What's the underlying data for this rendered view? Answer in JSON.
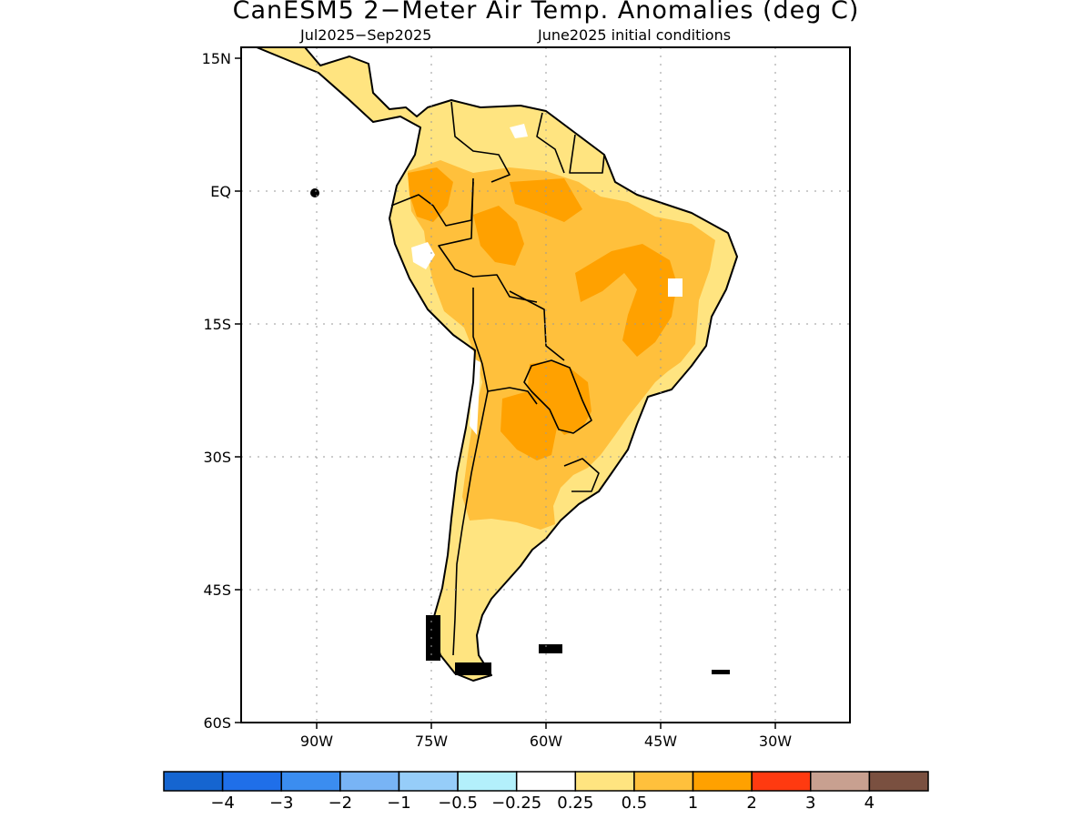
{
  "title": "CanESM5 2−Meter Air Temp. Anomalies (deg C)",
  "subtitle_left": "Jul2025−Sep2025",
  "subtitle_right": "June2025 initial conditions",
  "map": {
    "region": "South America",
    "lat_ticks": [
      "15N",
      "EQ",
      "15S",
      "30S",
      "45S",
      "60S"
    ],
    "lon_ticks": [
      "90W",
      "75W",
      "60W",
      "45W",
      "30W"
    ],
    "grid": "dotted",
    "colors": {
      "ocean": "#ffffff",
      "coast": "#000000",
      "c_025_05": "#ffe480",
      "c_05_1": "#ffc03c",
      "c_1_2": "#ffa100",
      "near_zero": "#ffffff"
    }
  },
  "colorbar": {
    "colors": [
      "#1565d0",
      "#1f6fe9",
      "#3b8df0",
      "#78b4f5",
      "#96cdf9",
      "#b3f0fb",
      "#ffffff",
      "#ffe480",
      "#ffc03c",
      "#ffa100",
      "#ff3a10",
      "#c8a090",
      "#7a5040"
    ],
    "labels": [
      "−4",
      "−3",
      "−2",
      "−1",
      "−0.5",
      "−0.25",
      "0.25",
      "0.5",
      "1",
      "2",
      "3",
      "4"
    ]
  }
}
